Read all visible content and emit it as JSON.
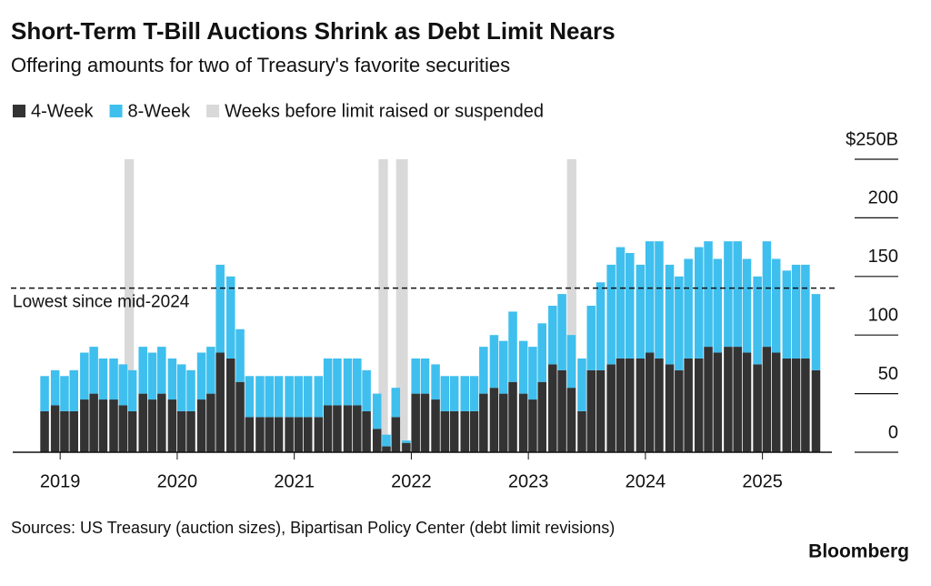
{
  "chart_data": {
    "type": "stacked-bar",
    "title": "Short-Term T-Bill Auctions Shrink as Debt Limit Nears",
    "subtitle": "Offering amounts for two of Treasury's favorite securities",
    "source": "Sources: US Treasury (auction sizes), Bipartisan Policy Center (debt limit revisions)",
    "brand": "Bloomberg",
    "x": [
      2018.83,
      2018.92,
      2019.0,
      2019.08,
      2019.17,
      2019.25,
      2019.33,
      2019.42,
      2019.5,
      2019.58,
      2019.67,
      2019.75,
      2019.83,
      2019.92,
      2020.0,
      2020.08,
      2020.17,
      2020.25,
      2020.33,
      2020.42,
      2020.5,
      2020.58,
      2020.67,
      2020.75,
      2020.83,
      2020.92,
      2021.0,
      2021.08,
      2021.17,
      2021.25,
      2021.33,
      2021.42,
      2021.5,
      2021.58,
      2021.67,
      2021.75,
      2021.83,
      2021.92,
      2022.0,
      2022.08,
      2022.17,
      2022.25,
      2022.33,
      2022.42,
      2022.5,
      2022.58,
      2022.67,
      2022.75,
      2022.83,
      2022.92,
      2023.0,
      2023.08,
      2023.17,
      2023.25,
      2023.33,
      2023.42,
      2023.5,
      2023.58,
      2023.67,
      2023.75,
      2023.83,
      2023.92,
      2024.0,
      2024.08,
      2024.17,
      2024.25,
      2024.33,
      2024.42,
      2024.5,
      2024.58,
      2024.67,
      2024.75,
      2024.83,
      2024.92,
      2025.0,
      2025.08,
      2025.17,
      2025.25,
      2025.33,
      2025.42
    ],
    "series": [
      {
        "name": "4-Week",
        "color": "#333333",
        "values": [
          35,
          40,
          35,
          35,
          45,
          50,
          45,
          45,
          40,
          35,
          50,
          45,
          50,
          45,
          35,
          35,
          45,
          50,
          85,
          80,
          60,
          30,
          30,
          30,
          30,
          30,
          30,
          30,
          30,
          40,
          40,
          40,
          40,
          35,
          20,
          5,
          30,
          8,
          50,
          50,
          45,
          35,
          35,
          35,
          35,
          50,
          55,
          50,
          60,
          50,
          45,
          60,
          75,
          70,
          55,
          35,
          70,
          70,
          75,
          80,
          80,
          80,
          85,
          80,
          75,
          70,
          80,
          80,
          90,
          85,
          90,
          90,
          85,
          75,
          90,
          85,
          80,
          80,
          80,
          70
        ]
      },
      {
        "name": "8-Week",
        "color": "#3fbfee",
        "values": [
          30,
          30,
          30,
          35,
          40,
          40,
          35,
          35,
          35,
          35,
          40,
          40,
          40,
          35,
          40,
          35,
          40,
          40,
          75,
          70,
          45,
          35,
          35,
          35,
          35,
          35,
          35,
          35,
          35,
          40,
          40,
          40,
          40,
          35,
          30,
          10,
          25,
          2,
          30,
          30,
          30,
          30,
          30,
          30,
          30,
          40,
          45,
          45,
          60,
          45,
          45,
          50,
          50,
          65,
          45,
          45,
          55,
          75,
          85,
          95,
          90,
          80,
          95,
          100,
          85,
          80,
          85,
          95,
          90,
          80,
          90,
          90,
          80,
          75,
          90,
          80,
          75,
          80,
          80,
          65
        ]
      }
    ],
    "shaded": {
      "name": "Weeks before limit raised or suspended",
      "color": "#d9d9d9",
      "ranges": [
        [
          2019.55,
          2019.63
        ],
        [
          2021.72,
          2021.8
        ],
        [
          2021.87,
          2021.97
        ],
        [
          2023.33,
          2023.41
        ]
      ]
    },
    "reference_line": {
      "value": 140,
      "label": "Lowest since mid-2024"
    },
    "xlim": [
      2018.75,
      2025.5
    ],
    "xticks": [
      2019,
      2020,
      2021,
      2022,
      2023,
      2024,
      2025
    ],
    "ylim": [
      0,
      250
    ],
    "yticks": [
      0,
      50,
      100,
      150,
      200,
      {
        "value": 250,
        "label": "$250B"
      }
    ]
  }
}
